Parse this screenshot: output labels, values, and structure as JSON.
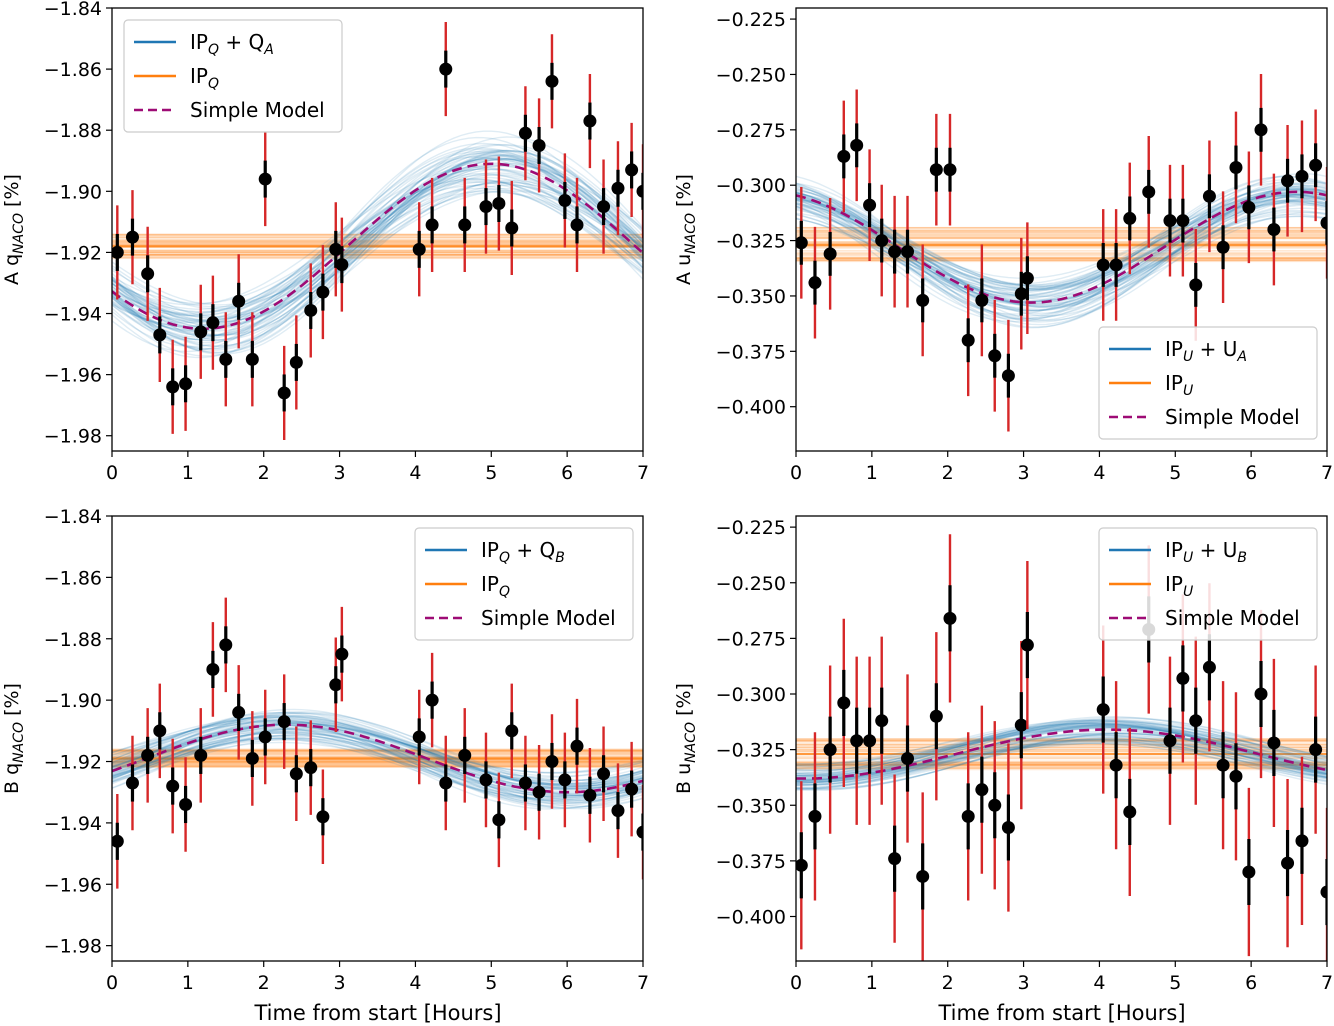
{
  "figure": {
    "xlabel": "Time from start [Hours]"
  },
  "chart_data": [
    {
      "type": "scatter",
      "ylabel_parts": [
        "A q",
        "NACO",
        " [%]"
      ],
      "xlim": [
        0,
        7
      ],
      "ylim": [
        -1.985,
        -1.84
      ],
      "xticks": [
        0,
        1,
        2,
        3,
        4,
        5,
        6,
        7
      ],
      "yticks": [
        -1.84,
        -1.86,
        -1.88,
        -1.9,
        -1.92,
        -1.94,
        -1.96,
        -1.98
      ],
      "ytick_labels": [
        "−1.84",
        "−1.86",
        "−1.88",
        "−1.90",
        "−1.92",
        "−1.94",
        "−1.96",
        "−1.98"
      ],
      "legend_position": "top-left",
      "legend": [
        {
          "parts": [
            "IP",
            "Q",
            " + Q",
            "A"
          ],
          "style": "solid",
          "color": "#1f77b4"
        },
        {
          "parts": [
            "IP",
            "Q"
          ],
          "style": "solid",
          "color": "#ff7f0e"
        },
        {
          "parts": [
            "Simple Model"
          ],
          "style": "dashed",
          "color": "#9e0b75"
        }
      ],
      "model": {
        "base": -1.918,
        "amplitude": 0.027,
        "peak_hour": 5.0,
        "period_hours": 7.6,
        "band_halfwidth": 0.004
      },
      "orange_level": -1.918,
      "orange_halfwidth": 0.004,
      "points": [
        {
          "x": 0.07,
          "y": -1.92,
          "err": 0.011
        },
        {
          "x": 0.27,
          "y": -1.915,
          "err": 0.011
        },
        {
          "x": 0.47,
          "y": -1.927,
          "err": 0.011
        },
        {
          "x": 0.63,
          "y": -1.947,
          "err": 0.011
        },
        {
          "x": 0.8,
          "y": -1.964,
          "err": 0.011
        },
        {
          "x": 0.97,
          "y": -1.963,
          "err": 0.011
        },
        {
          "x": 1.17,
          "y": -1.946,
          "err": 0.011
        },
        {
          "x": 1.33,
          "y": -1.943,
          "err": 0.011
        },
        {
          "x": 1.5,
          "y": -1.955,
          "err": 0.011
        },
        {
          "x": 1.67,
          "y": -1.936,
          "err": 0.011
        },
        {
          "x": 1.85,
          "y": -1.955,
          "err": 0.011
        },
        {
          "x": 2.02,
          "y": -1.896,
          "err": 0.011
        },
        {
          "x": 2.27,
          "y": -1.966,
          "err": 0.011
        },
        {
          "x": 2.43,
          "y": -1.956,
          "err": 0.011
        },
        {
          "x": 2.62,
          "y": -1.939,
          "err": 0.011
        },
        {
          "x": 2.78,
          "y": -1.933,
          "err": 0.011
        },
        {
          "x": 2.95,
          "y": -1.919,
          "err": 0.011
        },
        {
          "x": 3.03,
          "y": -1.924,
          "err": 0.011
        },
        {
          "x": 4.05,
          "y": -1.919,
          "err": 0.011
        },
        {
          "x": 4.22,
          "y": -1.911,
          "err": 0.011
        },
        {
          "x": 4.4,
          "y": -1.86,
          "err": 0.011
        },
        {
          "x": 4.65,
          "y": -1.911,
          "err": 0.011
        },
        {
          "x": 4.93,
          "y": -1.905,
          "err": 0.011
        },
        {
          "x": 5.1,
          "y": -1.904,
          "err": 0.011
        },
        {
          "x": 5.27,
          "y": -1.912,
          "err": 0.011
        },
        {
          "x": 5.45,
          "y": -1.881,
          "err": 0.011
        },
        {
          "x": 5.63,
          "y": -1.885,
          "err": 0.011
        },
        {
          "x": 5.8,
          "y": -1.864,
          "err": 0.011
        },
        {
          "x": 5.97,
          "y": -1.903,
          "err": 0.011
        },
        {
          "x": 6.13,
          "y": -1.911,
          "err": 0.011
        },
        {
          "x": 6.3,
          "y": -1.877,
          "err": 0.011
        },
        {
          "x": 6.48,
          "y": -1.905,
          "err": 0.011
        },
        {
          "x": 6.67,
          "y": -1.899,
          "err": 0.011
        },
        {
          "x": 6.85,
          "y": -1.893,
          "err": 0.011
        },
        {
          "x": 7.0,
          "y": -1.9,
          "err": 0.011
        }
      ]
    },
    {
      "type": "scatter",
      "ylabel_parts": [
        "A u",
        "NACO",
        " [%]"
      ],
      "xlim": [
        0,
        7
      ],
      "ylim": [
        -0.42,
        -0.22
      ],
      "xticks": [
        0,
        1,
        2,
        3,
        4,
        5,
        6,
        7
      ],
      "yticks": [
        -0.225,
        -0.25,
        -0.275,
        -0.3,
        -0.325,
        -0.35,
        -0.375,
        -0.4
      ],
      "ytick_labels": [
        "−0.225",
        "−0.250",
        "−0.275",
        "−0.300",
        "−0.325",
        "−0.350",
        "−0.375",
        "−0.400"
      ],
      "legend_position": "bottom-right",
      "legend": [
        {
          "parts": [
            "IP",
            "U",
            " + U",
            "A"
          ],
          "style": "solid",
          "color": "#1f77b4"
        },
        {
          "parts": [
            "IP",
            "U"
          ],
          "style": "solid",
          "color": "#ff7f0e"
        },
        {
          "parts": [
            "Simple Model"
          ],
          "style": "dashed",
          "color": "#9e0b75"
        }
      ],
      "model": {
        "base": -0.328,
        "amplitude": -0.025,
        "peak_hour": 3.1,
        "period_hours": 7.0,
        "band_halfwidth": 0.006
      },
      "orange_level": -0.327,
      "orange_halfwidth": 0.008,
      "points": [
        {
          "x": 0.07,
          "y": -0.326,
          "err": 0.018
        },
        {
          "x": 0.25,
          "y": -0.344,
          "err": 0.018
        },
        {
          "x": 0.45,
          "y": -0.331,
          "err": 0.018
        },
        {
          "x": 0.63,
          "y": -0.287,
          "err": 0.018
        },
        {
          "x": 0.8,
          "y": -0.282,
          "err": 0.018
        },
        {
          "x": 0.97,
          "y": -0.309,
          "err": 0.018
        },
        {
          "x": 1.13,
          "y": -0.325,
          "err": 0.018
        },
        {
          "x": 1.3,
          "y": -0.33,
          "err": 0.018
        },
        {
          "x": 1.47,
          "y": -0.33,
          "err": 0.018
        },
        {
          "x": 1.67,
          "y": -0.352,
          "err": 0.018
        },
        {
          "x": 1.85,
          "y": -0.293,
          "err": 0.018
        },
        {
          "x": 2.03,
          "y": -0.293,
          "err": 0.018
        },
        {
          "x": 2.27,
          "y": -0.37,
          "err": 0.018
        },
        {
          "x": 2.45,
          "y": -0.352,
          "err": 0.018
        },
        {
          "x": 2.62,
          "y": -0.377,
          "err": 0.018
        },
        {
          "x": 2.8,
          "y": -0.386,
          "err": 0.018
        },
        {
          "x": 2.97,
          "y": -0.349,
          "err": 0.018
        },
        {
          "x": 3.05,
          "y": -0.342,
          "err": 0.018
        },
        {
          "x": 4.05,
          "y": -0.336,
          "err": 0.018
        },
        {
          "x": 4.22,
          "y": -0.336,
          "err": 0.018
        },
        {
          "x": 4.4,
          "y": -0.315,
          "err": 0.018
        },
        {
          "x": 4.65,
          "y": -0.303,
          "err": 0.018
        },
        {
          "x": 4.93,
          "y": -0.316,
          "err": 0.018
        },
        {
          "x": 5.1,
          "y": -0.316,
          "err": 0.018
        },
        {
          "x": 5.27,
          "y": -0.345,
          "err": 0.018
        },
        {
          "x": 5.45,
          "y": -0.305,
          "err": 0.018
        },
        {
          "x": 5.63,
          "y": -0.328,
          "err": 0.018
        },
        {
          "x": 5.8,
          "y": -0.292,
          "err": 0.018
        },
        {
          "x": 5.97,
          "y": -0.31,
          "err": 0.018
        },
        {
          "x": 6.13,
          "y": -0.275,
          "err": 0.018
        },
        {
          "x": 6.3,
          "y": -0.32,
          "err": 0.018
        },
        {
          "x": 6.48,
          "y": -0.298,
          "err": 0.018
        },
        {
          "x": 6.67,
          "y": -0.296,
          "err": 0.018
        },
        {
          "x": 6.85,
          "y": -0.291,
          "err": 0.018
        },
        {
          "x": 7.0,
          "y": -0.317,
          "err": 0.018
        }
      ]
    },
    {
      "type": "scatter",
      "ylabel_parts": [
        "B q",
        "NACO",
        " [%]"
      ],
      "xlim": [
        0,
        7
      ],
      "ylim": [
        -1.985,
        -1.84
      ],
      "xticks": [
        0,
        1,
        2,
        3,
        4,
        5,
        6,
        7
      ],
      "yticks": [
        -1.84,
        -1.86,
        -1.88,
        -1.9,
        -1.92,
        -1.94,
        -1.96,
        -1.98
      ],
      "ytick_labels": [
        "−1.84",
        "−1.86",
        "−1.88",
        "−1.90",
        "−1.92",
        "−1.94",
        "−1.96",
        "−1.98"
      ],
      "legend_position": "top-right",
      "legend": [
        {
          "parts": [
            "IP",
            "Q",
            " + Q",
            "B"
          ],
          "style": "solid",
          "color": "#1f77b4"
        },
        {
          "parts": [
            "IP",
            "Q"
          ],
          "style": "solid",
          "color": "#ff7f0e"
        },
        {
          "parts": [
            "Simple Model"
          ],
          "style": "dashed",
          "color": "#9e0b75"
        }
      ],
      "model": {
        "base": -1.919,
        "amplitude": 0.011,
        "peak_hour": 2.3,
        "period_hours": 7.4,
        "band_halfwidth": 0.004
      },
      "orange_level": -1.919,
      "orange_halfwidth": 0.003,
      "points": [
        {
          "x": 0.07,
          "y": -1.946,
          "err": 0.011
        },
        {
          "x": 0.27,
          "y": -1.927,
          "err": 0.011
        },
        {
          "x": 0.47,
          "y": -1.918,
          "err": 0.011
        },
        {
          "x": 0.63,
          "y": -1.91,
          "err": 0.011
        },
        {
          "x": 0.8,
          "y": -1.928,
          "err": 0.011
        },
        {
          "x": 0.97,
          "y": -1.934,
          "err": 0.011
        },
        {
          "x": 1.17,
          "y": -1.918,
          "err": 0.011
        },
        {
          "x": 1.33,
          "y": -1.89,
          "err": 0.011
        },
        {
          "x": 1.5,
          "y": -1.882,
          "err": 0.011
        },
        {
          "x": 1.67,
          "y": -1.904,
          "err": 0.011
        },
        {
          "x": 1.85,
          "y": -1.919,
          "err": 0.011
        },
        {
          "x": 2.02,
          "y": -1.912,
          "err": 0.011
        },
        {
          "x": 2.27,
          "y": -1.907,
          "err": 0.011
        },
        {
          "x": 2.43,
          "y": -1.924,
          "err": 0.011
        },
        {
          "x": 2.62,
          "y": -1.922,
          "err": 0.011
        },
        {
          "x": 2.78,
          "y": -1.938,
          "err": 0.011
        },
        {
          "x": 2.95,
          "y": -1.895,
          "err": 0.011
        },
        {
          "x": 3.03,
          "y": -1.885,
          "err": 0.011
        },
        {
          "x": 4.05,
          "y": -1.912,
          "err": 0.011
        },
        {
          "x": 4.22,
          "y": -1.9,
          "err": 0.011
        },
        {
          "x": 4.4,
          "y": -1.927,
          "err": 0.011
        },
        {
          "x": 4.65,
          "y": -1.918,
          "err": 0.011
        },
        {
          "x": 4.93,
          "y": -1.926,
          "err": 0.011
        },
        {
          "x": 5.1,
          "y": -1.939,
          "err": 0.011
        },
        {
          "x": 5.27,
          "y": -1.91,
          "err": 0.011
        },
        {
          "x": 5.45,
          "y": -1.927,
          "err": 0.011
        },
        {
          "x": 5.63,
          "y": -1.93,
          "err": 0.011
        },
        {
          "x": 5.8,
          "y": -1.92,
          "err": 0.011
        },
        {
          "x": 5.97,
          "y": -1.926,
          "err": 0.011
        },
        {
          "x": 6.13,
          "y": -1.915,
          "err": 0.011
        },
        {
          "x": 6.3,
          "y": -1.931,
          "err": 0.011
        },
        {
          "x": 6.48,
          "y": -1.924,
          "err": 0.011
        },
        {
          "x": 6.67,
          "y": -1.936,
          "err": 0.011
        },
        {
          "x": 6.85,
          "y": -1.929,
          "err": 0.011
        },
        {
          "x": 7.0,
          "y": -1.943,
          "err": 0.011
        }
      ]
    },
    {
      "type": "scatter",
      "ylabel_parts": [
        "B u",
        "NACO",
        " [%]"
      ],
      "xlim": [
        0,
        7
      ],
      "ylim": [
        -0.42,
        -0.22
      ],
      "xticks": [
        0,
        1,
        2,
        3,
        4,
        5,
        6,
        7
      ],
      "yticks": [
        -0.225,
        -0.25,
        -0.275,
        -0.3,
        -0.325,
        -0.35,
        -0.375,
        -0.4
      ],
      "ytick_labels": [
        "−0.225",
        "−0.250",
        "−0.275",
        "−0.300",
        "−0.325",
        "−0.350",
        "−0.375",
        "−0.400"
      ],
      "legend_position": "top-right",
      "legend": [
        {
          "parts": [
            "IP",
            "U",
            " + U",
            "B"
          ],
          "style": "solid",
          "color": "#1f77b4"
        },
        {
          "parts": [
            "IP",
            "U"
          ],
          "style": "solid",
          "color": "#ff7f0e"
        },
        {
          "parts": [
            "Simple Model"
          ],
          "style": "dashed",
          "color": "#9e0b75"
        }
      ],
      "model": {
        "base": -0.327,
        "amplitude": 0.011,
        "peak_hour": 4.1,
        "period_hours": 8.0,
        "band_halfwidth": 0.005
      },
      "orange_level": -0.327,
      "orange_halfwidth": 0.007,
      "points": [
        {
          "x": 0.07,
          "y": -0.377,
          "err": 0.027
        },
        {
          "x": 0.25,
          "y": -0.355,
          "err": 0.027
        },
        {
          "x": 0.45,
          "y": -0.325,
          "err": 0.027
        },
        {
          "x": 0.63,
          "y": -0.304,
          "err": 0.027
        },
        {
          "x": 0.8,
          "y": -0.321,
          "err": 0.027
        },
        {
          "x": 0.97,
          "y": -0.321,
          "err": 0.027
        },
        {
          "x": 1.13,
          "y": -0.312,
          "err": 0.027
        },
        {
          "x": 1.3,
          "y": -0.374,
          "err": 0.027
        },
        {
          "x": 1.47,
          "y": -0.329,
          "err": 0.027
        },
        {
          "x": 1.67,
          "y": -0.382,
          "err": 0.027
        },
        {
          "x": 1.85,
          "y": -0.31,
          "err": 0.027
        },
        {
          "x": 2.03,
          "y": -0.266,
          "err": 0.027
        },
        {
          "x": 2.27,
          "y": -0.355,
          "err": 0.027
        },
        {
          "x": 2.45,
          "y": -0.343,
          "err": 0.027
        },
        {
          "x": 2.62,
          "y": -0.35,
          "err": 0.027
        },
        {
          "x": 2.8,
          "y": -0.36,
          "err": 0.027
        },
        {
          "x": 2.97,
          "y": -0.314,
          "err": 0.027
        },
        {
          "x": 3.05,
          "y": -0.278,
          "err": 0.027
        },
        {
          "x": 4.05,
          "y": -0.307,
          "err": 0.027
        },
        {
          "x": 4.22,
          "y": -0.332,
          "err": 0.027
        },
        {
          "x": 4.4,
          "y": -0.353,
          "err": 0.027
        },
        {
          "x": 4.65,
          "y": -0.271,
          "err": 0.027
        },
        {
          "x": 4.93,
          "y": -0.321,
          "err": 0.027
        },
        {
          "x": 5.1,
          "y": -0.293,
          "err": 0.027
        },
        {
          "x": 5.27,
          "y": -0.312,
          "err": 0.027
        },
        {
          "x": 5.45,
          "y": -0.288,
          "err": 0.027
        },
        {
          "x": 5.63,
          "y": -0.332,
          "err": 0.027
        },
        {
          "x": 5.8,
          "y": -0.337,
          "err": 0.027
        },
        {
          "x": 5.97,
          "y": -0.38,
          "err": 0.027
        },
        {
          "x": 6.13,
          "y": -0.3,
          "err": 0.027
        },
        {
          "x": 6.3,
          "y": -0.322,
          "err": 0.027
        },
        {
          "x": 6.48,
          "y": -0.376,
          "err": 0.027
        },
        {
          "x": 6.67,
          "y": -0.366,
          "err": 0.027
        },
        {
          "x": 6.85,
          "y": -0.325,
          "err": 0.027
        },
        {
          "x": 7.0,
          "y": -0.389,
          "err": 0.027
        }
      ]
    }
  ]
}
